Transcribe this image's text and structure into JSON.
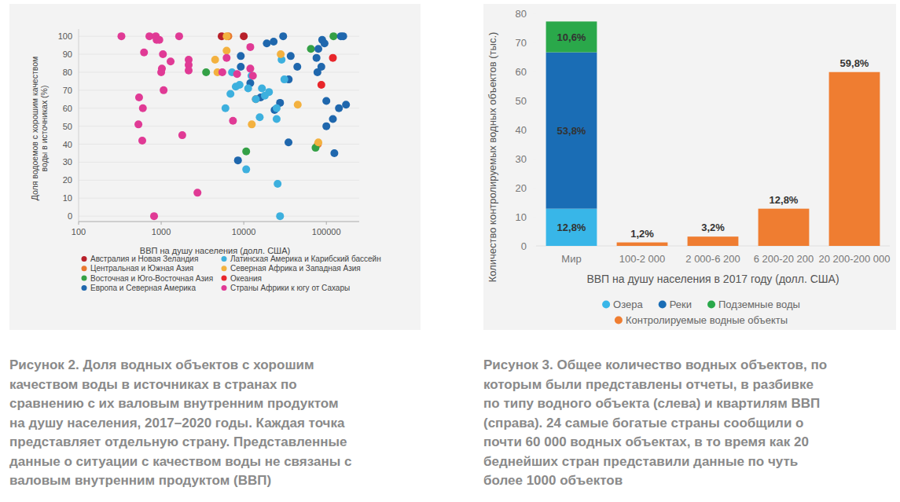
{
  "chart_data": [
    {
      "type": "scatter",
      "x_label": "ВВП на душу населения (долл. США)",
      "y_label": [
        "Доля водоемов с хорошим качеством",
        "воды в источниках (%)"
      ],
      "log": "x",
      "xlim": [
        100,
        250000
      ],
      "xticks": [
        100,
        1000,
        10000,
        100000
      ],
      "ylim": [
        -3,
        104
      ],
      "yticks": [
        0,
        10,
        20,
        30,
        40,
        50,
        60,
        70,
        80,
        90,
        100
      ],
      "grid": true,
      "legend": "bottom",
      "marker": "circle",
      "series": [
        {
          "name": "Австралия и Новая Зеландия",
          "color": "#b8202a",
          "x": [
            5400,
            10000
          ],
          "values": [
            100,
            100
          ]
        },
        {
          "name": "Центральная и Южная Азия",
          "color": "#e8772e",
          "x": [
            6500,
            14000,
            79000
          ],
          "values": [
            100,
            65,
            40
          ]
        },
        {
          "name": "Восточная и Юго-Восточная Азия",
          "color": "#34a046",
          "x": [
            3500,
            10700,
            65000,
            74000,
            122000
          ],
          "values": [
            80,
            36,
            93,
            38,
            100
          ]
        },
        {
          "name": "Европа и Северная Америка",
          "color": "#1f67ad",
          "x": [
            8500,
            9200,
            9200,
            16000,
            19000,
            23000,
            30000,
            37000,
            44500,
            34800,
            35000,
            23600,
            27500,
            76000,
            78000,
            89000,
            95000,
            87000,
            100000,
            120000,
            125000,
            142000,
            173000,
            150000,
            160000,
            100000,
            80000,
            12000
          ],
          "values": [
            31,
            89,
            83,
            66,
            96,
            97,
            100,
            89,
            83,
            41,
            76,
            59,
            63,
            88,
            80,
            98,
            96,
            83,
            50,
            54,
            35,
            60,
            62,
            100,
            100,
            64,
            93,
            74
          ]
        },
        {
          "name": "Латинская Америка и Карибский бассейн",
          "color": "#3db0de",
          "x": [
            6000,
            6900,
            7200,
            8000,
            8900,
            11300,
            12400,
            10700,
            15600,
            16600,
            20200,
            25000,
            25000,
            28700,
            25700,
            27500,
            31000,
            18000,
            14000
          ],
          "values": [
            60,
            68,
            80,
            72,
            73,
            71,
            78,
            26,
            55,
            71,
            69,
            60,
            54,
            87,
            18,
            0,
            76,
            67,
            65
          ]
        },
        {
          "name": "Северная Африка и Западная Азия",
          "color": "#f3b13f",
          "x": [
            6200,
            4500,
            4800,
            6200,
            12500,
            28000,
            80000,
            45000
          ],
          "values": [
            100,
            87,
            80,
            92,
            51,
            90,
            41,
            62
          ]
        },
        {
          "name": "Океания",
          "color": "#e8262b",
          "x": [
            87000,
            120000
          ],
          "values": [
            73,
            88
          ]
        },
        {
          "name": "Страны Африки к югу от Сахары",
          "color": "#e03a95",
          "x": [
            330,
            720,
            860,
            880,
            950,
            1650,
            620,
            1050,
            1300,
            2150,
            2150,
            2150,
            1020,
            1000,
            1070,
            540,
            600,
            530,
            590,
            1800,
            2750,
            820,
            6200,
            12000,
            12000,
            5500,
            12900,
            7400,
            8300
          ],
          "values": [
            100,
            100,
            100,
            98,
            98,
            100,
            91,
            90,
            86,
            87,
            84,
            81,
            82,
            80,
            70,
            66,
            60,
            51,
            42,
            45,
            13,
            0,
            88,
            82,
            94,
            80,
            78,
            53,
            79
          ]
        }
      ],
      "caption": [
        "Рисунок 2. Доля водных объектов с хорошим",
        "качеством воды в источниках в странах по",
        "сравнению с их валовым внутренним продуктом",
        "на душу населения, 2017–2020 годы. Каждая точка",
        "представляет отдельную страну. Представленные",
        "данные о ситуации с качеством воды не связаны с",
        "валовым внутренним продуктом (ВВП)"
      ]
    },
    {
      "type": "bar",
      "stacked": true,
      "data_labels": true,
      "x_label": "ВВП на душу населения в 2017 году (долл. США)",
      "y_label": "Количество контролируемых водных объектов (тыс.)",
      "categories": [
        "Мир",
        "100-2 000",
        "2 000-6 200",
        "6 200-20 200",
        "20 200-200 000"
      ],
      "ylim": [
        0,
        80
      ],
      "yticks": [
        0,
        10,
        20,
        30,
        40,
        50,
        60,
        70,
        80
      ],
      "grid": false,
      "legend": "bottom",
      "series": [
        {
          "name": "Озера",
          "color": "#38b6e8",
          "values": [
            12.8,
            null,
            null,
            null,
            null
          ],
          "value_labels": [
            "12,8%",
            null,
            null,
            null,
            null
          ]
        },
        {
          "name": "Реки",
          "color": "#1a6db5",
          "values": [
            53.8,
            null,
            null,
            null,
            null
          ],
          "value_labels": [
            "53,8%",
            null,
            null,
            null,
            null
          ]
        },
        {
          "name": "Подземные воды",
          "color": "#2aa84a",
          "values": [
            10.6,
            null,
            null,
            null,
            null
          ],
          "value_labels": [
            "10,6%",
            null,
            null,
            null,
            null
          ]
        },
        {
          "name": "Контролируемые водные объекты",
          "color": "#ef7d31",
          "values": [
            null,
            1.2,
            3.2,
            12.8,
            59.8
          ],
          "value_labels": [
            null,
            "1,2%",
            "3,2%",
            "12,8%",
            "59,8%"
          ]
        }
      ],
      "caption": [
        "Рисунок 3. Общее количество водных объектов, по",
        "которым были представлены отчеты, в разбивке",
        "по типу водного объекта (слева) и квартилям ВВП",
        "(справа). 24 самые богатые страны сообщили о",
        "почти 60 000 водных объектах, в то время как 20",
        "беднейших стран представили данные по чуть",
        "более 1000 объектов"
      ]
    }
  ]
}
